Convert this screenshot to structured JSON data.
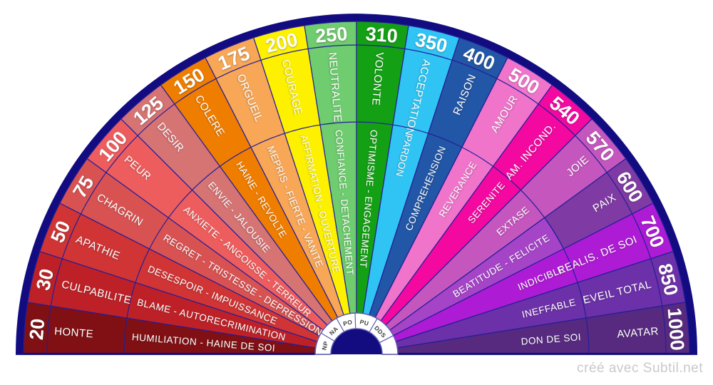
{
  "watermark": {
    "text": "créé avec Subtil.net",
    "color": "#c9c9cd"
  },
  "chart_data": {
    "type": "semicircular-fan",
    "title": "",
    "start_angle": 180,
    "end_angle": 0,
    "legend": "none",
    "background": "#ffffff",
    "rim_color": "#120c80",
    "divider_color": "#241e98",
    "label_color": "#ffffff",
    "center_ring": {
      "fill": "#ffffff",
      "stroke": "#5b5bb2",
      "text_color": "#3f3f3f",
      "labels": [
        "NP",
        "NA",
        "PO",
        "PU",
        "DDS"
      ]
    },
    "sectors": [
      {
        "value": "20",
        "label": "HONTE",
        "sublabel": "HUMILIATION - HAINE DE SOI",
        "color": "#801014"
      },
      {
        "value": "30",
        "label": "CULPABILITE",
        "sublabel": "BLAME - AUTORECRIMINATION",
        "color": "#bd2127"
      },
      {
        "value": "50",
        "label": "APATHIE",
        "sublabel": "DESESPOIR - IMPUISSANCE",
        "color": "#d03434"
      },
      {
        "value": "75",
        "label": "CHAGRIN",
        "sublabel": "REGRET - TRISTESSE - DEPRESSION",
        "color": "#d95252"
      },
      {
        "value": "100",
        "label": "PEUR",
        "sublabel": "ANXIETE - ANGOISSE - TERREUR",
        "color": "#ee5d5d"
      },
      {
        "value": "125",
        "label": "DESIR",
        "sublabel": "ENVIE - JALOUSIE",
        "color": "#d67373"
      },
      {
        "value": "150",
        "label": "COLERE",
        "sublabel": "HAINE - REVOLTE",
        "color": "#ef7d00"
      },
      {
        "value": "175",
        "label": "ORGUEIL",
        "sublabel": "MEPRIS - FIERTE - VANITE",
        "color": "#f8a757"
      },
      {
        "value": "200",
        "label": "COURAGE",
        "sublabel": "AFFIRMATION - OUVERTURE",
        "color": "#fdf100"
      },
      {
        "value": "250",
        "label": "NEUTRALITE",
        "sublabel": "CONFIANCE - DETACHEMENT",
        "color": "#6fcc6f"
      },
      {
        "value": "310",
        "label": "VOLONTE",
        "sublabel": "OPTIMISME - ENGAGEMENT",
        "color": "#14a014"
      },
      {
        "value": "350",
        "label": "ACCEPTATION",
        "sublabel": "PARDON",
        "color": "#2fc4f3"
      },
      {
        "value": "400",
        "label": "RAISON",
        "sublabel": "COMPREHENSION",
        "color": "#2256a6"
      },
      {
        "value": "500",
        "label": "AMOUR",
        "sublabel": "REVERANCE",
        "color": "#ef74ca"
      },
      {
        "value": "540",
        "label": "AM. INCOND.",
        "sublabel": "SERENITE",
        "color": "#f308a0"
      },
      {
        "value": "570",
        "label": "JOIE",
        "sublabel": "EXTASE",
        "color": "#c556be"
      },
      {
        "value": "600",
        "label": "PAIX",
        "sublabel": "BEATITUDE - FELICITE",
        "color": "#7f3ba3",
        "inner_color": "#a644c8"
      },
      {
        "value": "700",
        "label": "REALIS. DE SOI",
        "sublabel": "INDICIBLE",
        "color": "#ae1bd5"
      },
      {
        "value": "850",
        "label": "EVEIL TOTAL",
        "sublabel": "INEFFABLE",
        "color": "#6c30a8"
      },
      {
        "value": "1000",
        "label": "AVATAR",
        "sublabel": "DON DE SOI",
        "color": "#572a80"
      }
    ]
  }
}
